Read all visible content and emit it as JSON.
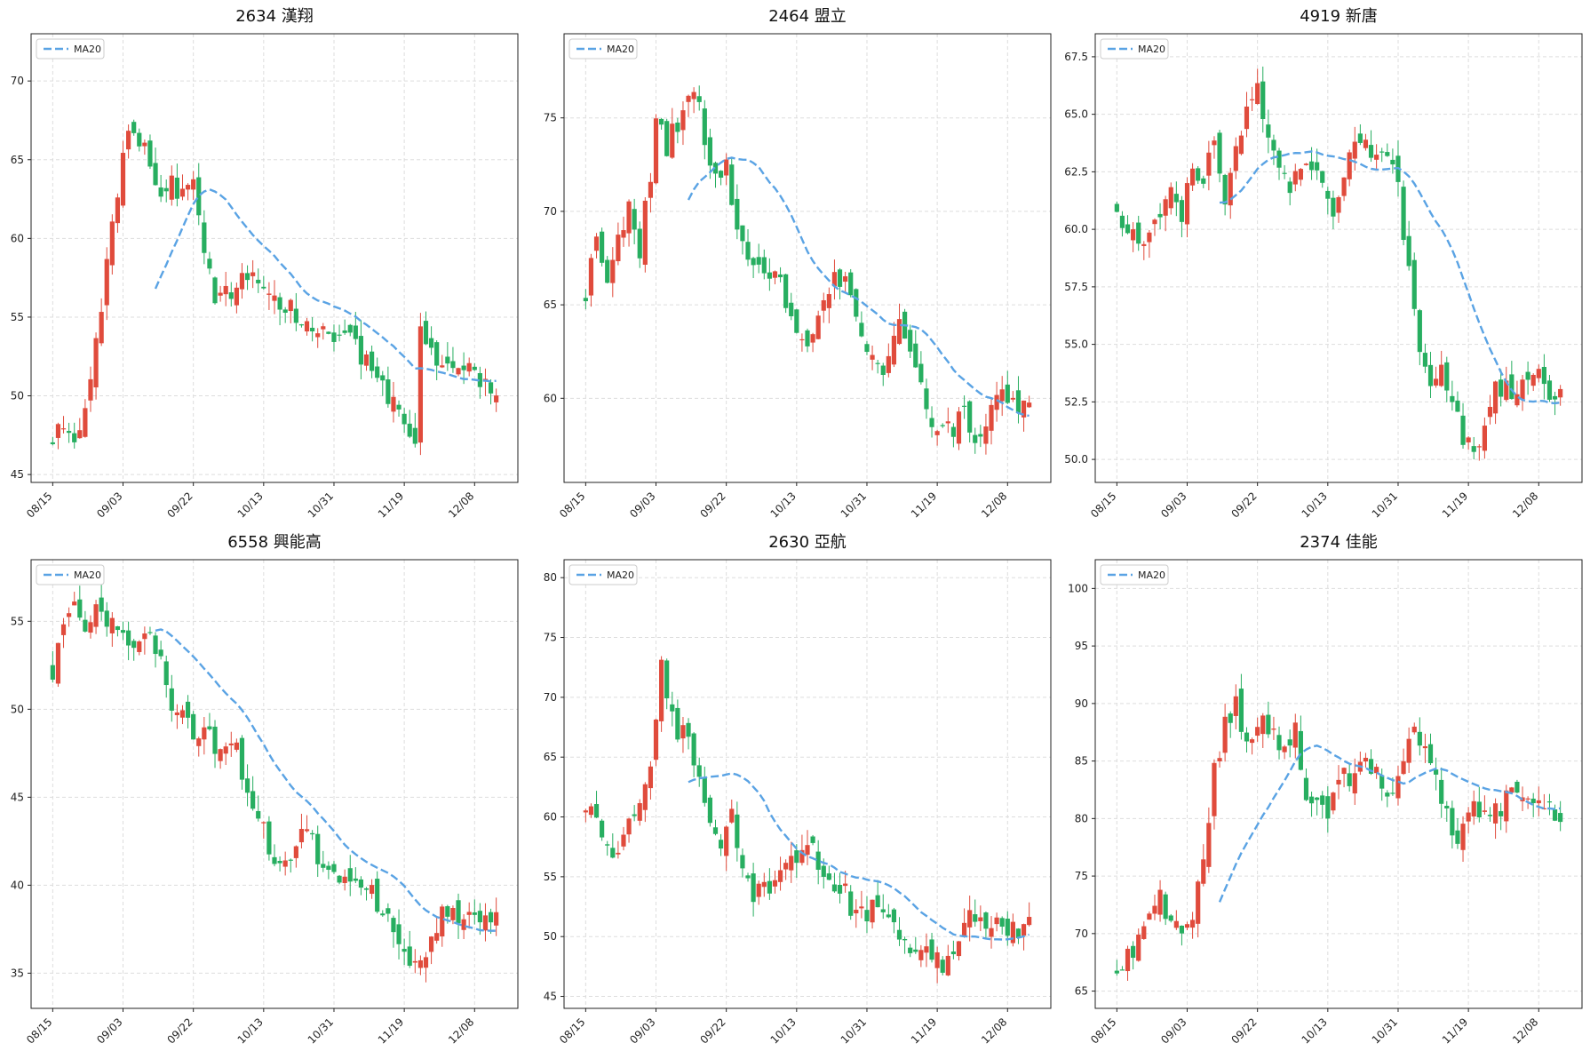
{
  "colors": {
    "up": "#e04b3c",
    "down": "#27ae60",
    "ma": "#5aa3e4",
    "grid": "#dddddd",
    "frame": "#222222"
  },
  "chart_data": [
    {
      "type": "candlestick",
      "title": "2634 漢翔",
      "ylim": [
        44.5,
        73
      ],
      "yticks": [
        45,
        50,
        55,
        60,
        65,
        70
      ],
      "ytick_labels": [
        "45",
        "50",
        "55",
        "60",
        "65",
        "70"
      ],
      "xticks": [
        0,
        13,
        26,
        39,
        52,
        65,
        78
      ],
      "xtick_labels": [
        "08/15",
        "09/03",
        "09/22",
        "10/13",
        "10/31",
        "11/19",
        "12/08"
      ],
      "x_range": [
        -4,
        86
      ],
      "legend": {
        "label": "MA20",
        "placement": "upper-left"
      },
      "grid": true,
      "keypoints": [
        [
          0,
          47.3
        ],
        [
          2,
          48.5
        ],
        [
          4,
          47.2
        ],
        [
          6,
          49.5
        ],
        [
          8,
          53.0
        ],
        [
          10,
          59.0
        ],
        [
          12,
          62.5
        ],
        [
          13,
          65.5
        ],
        [
          14,
          67.5
        ],
        [
          16,
          66.5
        ],
        [
          18,
          65.0
        ],
        [
          20,
          63.0
        ],
        [
          22,
          63.5
        ],
        [
          24,
          62.5
        ],
        [
          26,
          64.0
        ],
        [
          28,
          59.0
        ],
        [
          30,
          56.5
        ],
        [
          33,
          56.3
        ],
        [
          35,
          57.8
        ],
        [
          38,
          57.5
        ],
        [
          40,
          56.0
        ],
        [
          43,
          55.8
        ],
        [
          46,
          55.0
        ],
        [
          49,
          54.0
        ],
        [
          52,
          53.2
        ],
        [
          55,
          54.0
        ],
        [
          58,
          52.0
        ],
        [
          61,
          50.8
        ],
        [
          63,
          49.5
        ],
        [
          65,
          47.5
        ],
        [
          67,
          47.0
        ],
        [
          68,
          53.8
        ],
        [
          70,
          53.0
        ],
        [
          72,
          51.5
        ],
        [
          74,
          51.5
        ],
        [
          76,
          51.8
        ],
        [
          79,
          51.0
        ],
        [
          81,
          50.6
        ]
      ],
      "ma_start": 19,
      "seed": 11
    },
    {
      "type": "candlestick",
      "title": "2464 盟立",
      "ylim": [
        55.5,
        79.5
      ],
      "yticks": [
        60,
        65,
        70,
        75
      ],
      "ytick_labels": [
        "60",
        "65",
        "70",
        "75"
      ],
      "xticks": [
        0,
        13,
        26,
        39,
        52,
        65,
        78
      ],
      "xtick_labels": [
        "08/15",
        "09/03",
        "09/22",
        "10/13",
        "10/31",
        "11/19",
        "12/08"
      ],
      "x_range": [
        -4,
        86
      ],
      "legend": {
        "label": "MA20",
        "placement": "upper-left"
      },
      "grid": true,
      "keypoints": [
        [
          0,
          65.5
        ],
        [
          2,
          69.0
        ],
        [
          4,
          66.5
        ],
        [
          6,
          68.5
        ],
        [
          8,
          70.5
        ],
        [
          10,
          68.0
        ],
        [
          12,
          72.0
        ],
        [
          13,
          75.5
        ],
        [
          15,
          73.5
        ],
        [
          18,
          75.5
        ],
        [
          20,
          76.5
        ],
        [
          22,
          74.0
        ],
        [
          24,
          72.0
        ],
        [
          26,
          72.5
        ],
        [
          28,
          69.0
        ],
        [
          30,
          67.5
        ],
        [
          33,
          66.5
        ],
        [
          36,
          66.5
        ],
        [
          39,
          63.0
        ],
        [
          42,
          63.0
        ],
        [
          45,
          66.0
        ],
        [
          48,
          66.5
        ],
        [
          50,
          64.5
        ],
        [
          52,
          63.0
        ],
        [
          55,
          61.5
        ],
        [
          58,
          64.5
        ],
        [
          60,
          62.0
        ],
        [
          63,
          59.5
        ],
        [
          65,
          58.0
        ],
        [
          68,
          58.5
        ],
        [
          70,
          59.5
        ],
        [
          72,
          58.0
        ],
        [
          75,
          59.5
        ],
        [
          77,
          60.5
        ],
        [
          80,
          59.5
        ],
        [
          82,
          60.0
        ]
      ],
      "ma_start": 19,
      "seed": 23
    },
    {
      "type": "candlestick",
      "title": "4919 新唐",
      "ylim": [
        49,
        68.5
      ],
      "yticks": [
        50,
        52.5,
        55,
        57.5,
        60,
        62.5,
        65,
        67.5
      ],
      "ytick_labels": [
        "50.0",
        "52.5",
        "55.0",
        "57.5",
        "60.0",
        "62.5",
        "65.0",
        "67.5"
      ],
      "xticks": [
        0,
        13,
        26,
        39,
        52,
        65,
        78
      ],
      "xtick_labels": [
        "08/15",
        "09/03",
        "09/22",
        "10/13",
        "10/31",
        "11/19",
        "12/08"
      ],
      "x_range": [
        -4,
        86
      ],
      "legend": {
        "label": "MA20",
        "placement": "upper-left"
      },
      "grid": true,
      "keypoints": [
        [
          0,
          61.0
        ],
        [
          2,
          60.0
        ],
        [
          4,
          59.5
        ],
        [
          6,
          60.0
        ],
        [
          8,
          61.0
        ],
        [
          10,
          62.0
        ],
        [
          12,
          60.5
        ],
        [
          14,
          63.0
        ],
        [
          16,
          62.0
        ],
        [
          18,
          64.0
        ],
        [
          20,
          61.5
        ],
        [
          22,
          63.5
        ],
        [
          24,
          65.5
        ],
        [
          26,
          66.0
        ],
        [
          28,
          64.0
        ],
        [
          30,
          62.5
        ],
        [
          32,
          62.0
        ],
        [
          34,
          62.5
        ],
        [
          37,
          63.0
        ],
        [
          39,
          61.0
        ],
        [
          41,
          61.0
        ],
        [
          43,
          63.0
        ],
        [
          45,
          64.0
        ],
        [
          47,
          63.5
        ],
        [
          50,
          63.0
        ],
        [
          52,
          62.0
        ],
        [
          54,
          58.0
        ],
        [
          56,
          55.0
        ],
        [
          58,
          53.5
        ],
        [
          60,
          54.0
        ],
        [
          62,
          52.5
        ],
        [
          64,
          51.0
        ],
        [
          66,
          50.5
        ],
        [
          68,
          51.0
        ],
        [
          70,
          53.0
        ],
        [
          72,
          53.0
        ],
        [
          74,
          52.8
        ],
        [
          76,
          53.5
        ],
        [
          78,
          53.5
        ],
        [
          80,
          53.0
        ]
      ],
      "ma_start": 19,
      "seed": 37
    },
    {
      "type": "candlestick",
      "title": "6558 興能高",
      "ylim": [
        33,
        58.5
      ],
      "yticks": [
        35,
        40,
        45,
        50,
        55
      ],
      "ytick_labels": [
        "35",
        "40",
        "45",
        "50",
        "55"
      ],
      "xticks": [
        0,
        13,
        26,
        39,
        52,
        65,
        78
      ],
      "xtick_labels": [
        "08/15",
        "09/03",
        "09/22",
        "10/13",
        "10/31",
        "11/19",
        "12/08"
      ],
      "x_range": [
        -4,
        86
      ],
      "legend": {
        "label": "MA20",
        "placement": "upper-left"
      },
      "grid": true,
      "keypoints": [
        [
          0,
          52.0
        ],
        [
          2,
          55.0
        ],
        [
          4,
          55.5
        ],
        [
          6,
          54.0
        ],
        [
          8,
          55.5
        ],
        [
          10,
          55.0
        ],
        [
          12,
          54.5
        ],
        [
          14,
          53.0
        ],
        [
          16,
          53.5
        ],
        [
          18,
          54.0
        ],
        [
          20,
          53.5
        ],
        [
          22,
          50.5
        ],
        [
          24,
          49.5
        ],
        [
          26,
          48.5
        ],
        [
          28,
          49.0
        ],
        [
          30,
          47.5
        ],
        [
          32,
          48.5
        ],
        [
          34,
          47.5
        ],
        [
          36,
          45.5
        ],
        [
          38,
          44.0
        ],
        [
          40,
          42.0
        ],
        [
          42,
          41.5
        ],
        [
          44,
          41.5
        ],
        [
          46,
          43.5
        ],
        [
          48,
          42.5
        ],
        [
          50,
          41.0
        ],
        [
          52,
          40.5
        ],
        [
          54,
          40.5
        ],
        [
          56,
          40.0
        ],
        [
          58,
          40.0
        ],
        [
          60,
          39.0
        ],
        [
          62,
          38.0
        ],
        [
          64,
          37.0
        ],
        [
          66,
          36.0
        ],
        [
          68,
          35.5
        ],
        [
          70,
          37.0
        ],
        [
          72,
          38.5
        ],
        [
          74,
          38.5
        ],
        [
          76,
          38.0
        ],
        [
          78,
          38.0
        ],
        [
          82,
          38.3
        ]
      ],
      "ma_start": 19,
      "seed": 41
    },
    {
      "type": "candlestick",
      "title": "2630 亞航",
      "ylim": [
        44,
        81.5
      ],
      "yticks": [
        45,
        50,
        55,
        60,
        65,
        70,
        75,
        80
      ],
      "ytick_labels": [
        "45",
        "50",
        "55",
        "60",
        "65",
        "70",
        "75",
        "80"
      ],
      "xticks": [
        0,
        13,
        26,
        39,
        52,
        65,
        78
      ],
      "xtick_labels": [
        "08/15",
        "09/03",
        "09/22",
        "10/13",
        "10/31",
        "11/19",
        "12/08"
      ],
      "x_range": [
        -4,
        86
      ],
      "legend": {
        "label": "MA20",
        "placement": "upper-left"
      },
      "grid": true,
      "keypoints": [
        [
          0,
          61.0
        ],
        [
          2,
          60.0
        ],
        [
          4,
          57.0
        ],
        [
          6,
          57.5
        ],
        [
          8,
          60.0
        ],
        [
          10,
          62.0
        ],
        [
          12,
          65.0
        ],
        [
          13,
          68.0
        ],
        [
          14,
          73.0
        ],
        [
          15,
          70.0
        ],
        [
          17,
          67.0
        ],
        [
          19,
          66.5
        ],
        [
          21,
          63.0
        ],
        [
          23,
          60.0
        ],
        [
          25,
          57.5
        ],
        [
          27,
          60.0
        ],
        [
          29,
          55.0
        ],
        [
          31,
          53.5
        ],
        [
          33,
          54.0
        ],
        [
          35,
          55.0
        ],
        [
          37,
          56.0
        ],
        [
          39,
          56.5
        ],
        [
          40,
          58.0
        ],
        [
          42,
          57.0
        ],
        [
          44,
          55.5
        ],
        [
          46,
          54.5
        ],
        [
          48,
          53.5
        ],
        [
          50,
          51.5
        ],
        [
          52,
          52.0
        ],
        [
          54,
          53.0
        ],
        [
          56,
          52.0
        ],
        [
          58,
          49.5
        ],
        [
          60,
          48.5
        ],
        [
          62,
          48.5
        ],
        [
          64,
          48.0
        ],
        [
          66,
          47.5
        ],
        [
          68,
          48.0
        ],
        [
          70,
          51.0
        ],
        [
          72,
          52.0
        ],
        [
          74,
          51.5
        ],
        [
          76,
          51.0
        ],
        [
          80,
          50.5
        ],
        [
          82,
          51.0
        ]
      ],
      "ma_start": 19,
      "seed": 53
    },
    {
      "type": "candlestick",
      "title": "2374 佳能",
      "ylim": [
        63.5,
        102.5
      ],
      "yticks": [
        65,
        70,
        75,
        80,
        85,
        90,
        95,
        100
      ],
      "ytick_labels": [
        "65",
        "70",
        "75",
        "80",
        "85",
        "90",
        "95",
        "100"
      ],
      "xticks": [
        0,
        13,
        26,
        39,
        52,
        65,
        78
      ],
      "xtick_labels": [
        "08/15",
        "09/03",
        "09/22",
        "10/13",
        "10/31",
        "11/19",
        "12/08"
      ],
      "x_range": [
        -4,
        86
      ],
      "legend": {
        "label": "MA20",
        "placement": "upper-left"
      },
      "grid": true,
      "keypoints": [
        [
          0,
          67.0
        ],
        [
          2,
          68.5
        ],
        [
          4,
          69.0
        ],
        [
          6,
          71.0
        ],
        [
          8,
          73.0
        ],
        [
          10,
          71.5
        ],
        [
          12,
          70.5
        ],
        [
          14,
          72.0
        ],
        [
          16,
          77.0
        ],
        [
          18,
          84.0
        ],
        [
          20,
          88.0
        ],
        [
          22,
          90.0
        ],
        [
          23,
          88.0
        ],
        [
          25,
          86.5
        ],
        [
          27,
          88.0
        ],
        [
          29,
          87.0
        ],
        [
          31,
          86.5
        ],
        [
          33,
          87.5
        ],
        [
          35,
          82.0
        ],
        [
          37,
          81.5
        ],
        [
          39,
          80.5
        ],
        [
          41,
          84.0
        ],
        [
          43,
          83.5
        ],
        [
          45,
          85.0
        ],
        [
          47,
          84.5
        ],
        [
          49,
          83.0
        ],
        [
          51,
          82.0
        ],
        [
          53,
          85.0
        ],
        [
          55,
          88.0
        ],
        [
          57,
          86.0
        ],
        [
          59,
          83.5
        ],
        [
          61,
          80.0
        ],
        [
          63,
          78.0
        ],
        [
          65,
          81.5
        ],
        [
          67,
          80.5
        ],
        [
          69,
          80.0
        ],
        [
          71,
          81.0
        ],
        [
          73,
          82.5
        ],
        [
          75,
          82.0
        ],
        [
          77,
          81.0
        ],
        [
          79,
          80.5
        ]
      ],
      "ma_start": 19,
      "seed": 67
    }
  ]
}
